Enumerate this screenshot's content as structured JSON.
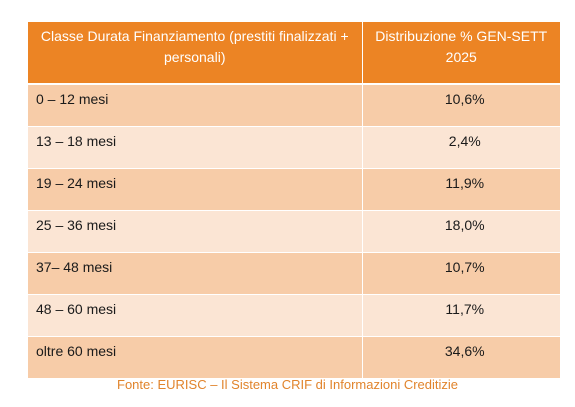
{
  "table": {
    "header": {
      "col1": "Classe Durata Finanziamento (prestiti finalizzati + personali)",
      "col2": "Distribuzione % GEN-SETT 2025"
    },
    "rows": [
      {
        "label": "0 – 12 mesi",
        "value": "10,6%"
      },
      {
        "label": "13 – 18 mesi",
        "value": "2,4%"
      },
      {
        "label": "19 – 24 mesi",
        "value": "11,9%"
      },
      {
        "label": "25 – 36 mesi",
        "value": "18,0%"
      },
      {
        "label": "37– 48 mesi",
        "value": "10,7%"
      },
      {
        "label": "48 – 60 mesi",
        "value": "11,7%"
      },
      {
        "label": "oltre 60 mesi",
        "value": "34,6%"
      }
    ]
  },
  "source": "Fonte: EURISC – Il Sistema CRIF di Informazioni Creditizie",
  "colors": {
    "header": "#ec8424",
    "row_dark": "#f7cca8",
    "row_light": "#fbe5d4",
    "source_text": "#e1842c"
  }
}
